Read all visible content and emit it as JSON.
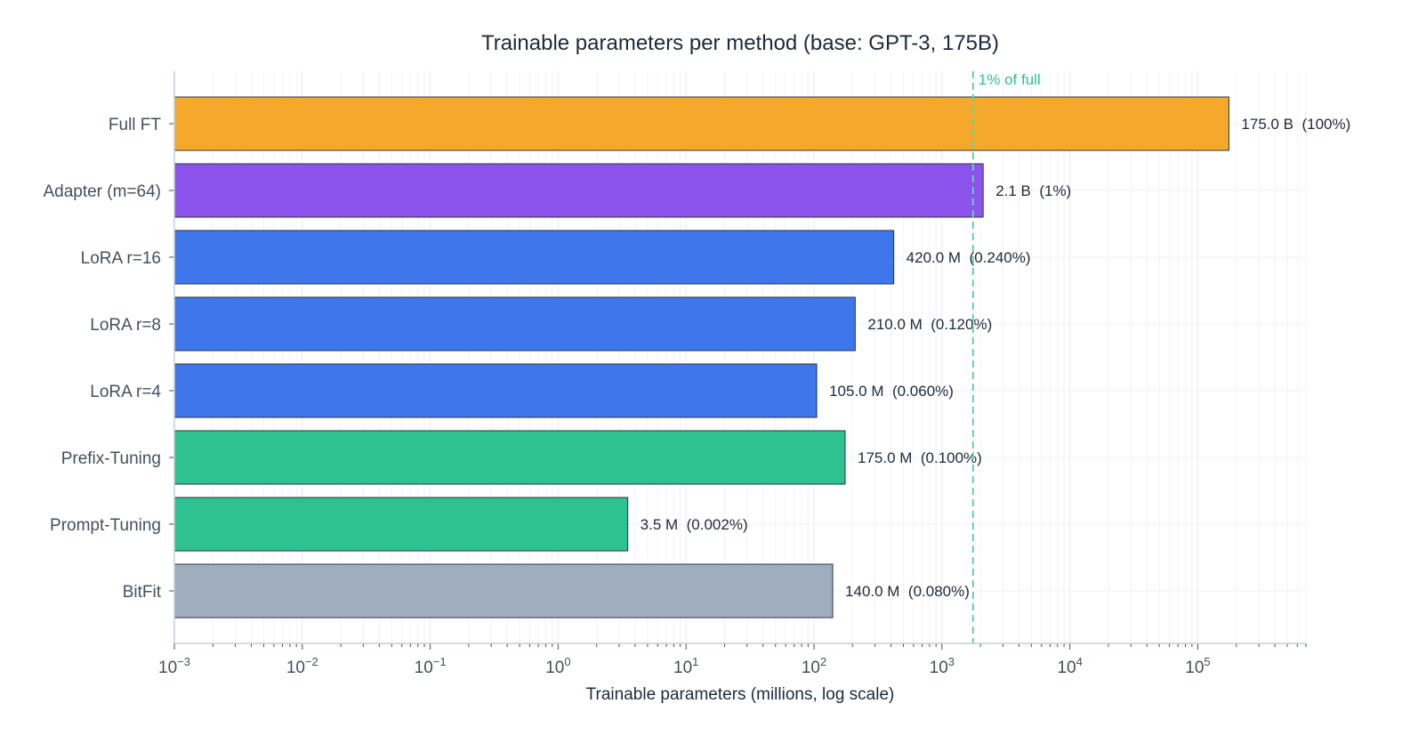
{
  "chart_data": {
    "type": "bar",
    "orientation": "horizontal",
    "title": "Trainable parameters per method  (base: GPT-3, 175B)",
    "xlabel": "Trainable parameters (millions, log scale)",
    "ylabel": "",
    "xscale": "log",
    "xlim": [
      0.001,
      700000
    ],
    "grid": true,
    "categories": [
      "Full FT",
      "Adapter (m=64)",
      "LoRA r=16",
      "LoRA r=8",
      "LoRA r=4",
      "Prefix-Tuning",
      "Prompt-Tuning",
      "BitFit"
    ],
    "values": [
      175000,
      2100,
      420,
      210,
      105,
      175,
      3.5,
      140
    ],
    "data_labels": [
      "175.0 B  (100%)",
      "2.1 B  (1%)",
      "420.0 M  (0.240%)",
      "210.0 M  (0.120%)",
      "105.0 M  (0.060%)",
      "175.0 M  (0.100%)",
      "3.5 M  (0.002%)",
      "140.0 M  (0.080%)"
    ],
    "colors": [
      "#f4a92c",
      "#8b53ec",
      "#3f76ec",
      "#3f76ec",
      "#3f76ec",
      "#2ec290",
      "#2ec290",
      "#a0adbf"
    ],
    "x_ticks": [
      {
        "exp": -3,
        "label": "10",
        "sup": "−3"
      },
      {
        "exp": -2,
        "label": "10",
        "sup": "−2"
      },
      {
        "exp": -1,
        "label": "10",
        "sup": "−1"
      },
      {
        "exp": 0,
        "label": "10",
        "sup": "0"
      },
      {
        "exp": 1,
        "label": "10",
        "sup": "1"
      },
      {
        "exp": 2,
        "label": "10",
        "sup": "2"
      },
      {
        "exp": 3,
        "label": "10",
        "sup": "3"
      },
      {
        "exp": 4,
        "label": "10",
        "sup": "4"
      },
      {
        "exp": 5,
        "label": "10",
        "sup": "5"
      }
    ],
    "reference_line": {
      "value": 1750,
      "label": "1% of full",
      "color": "#2ec290",
      "style": "dashed"
    }
  }
}
